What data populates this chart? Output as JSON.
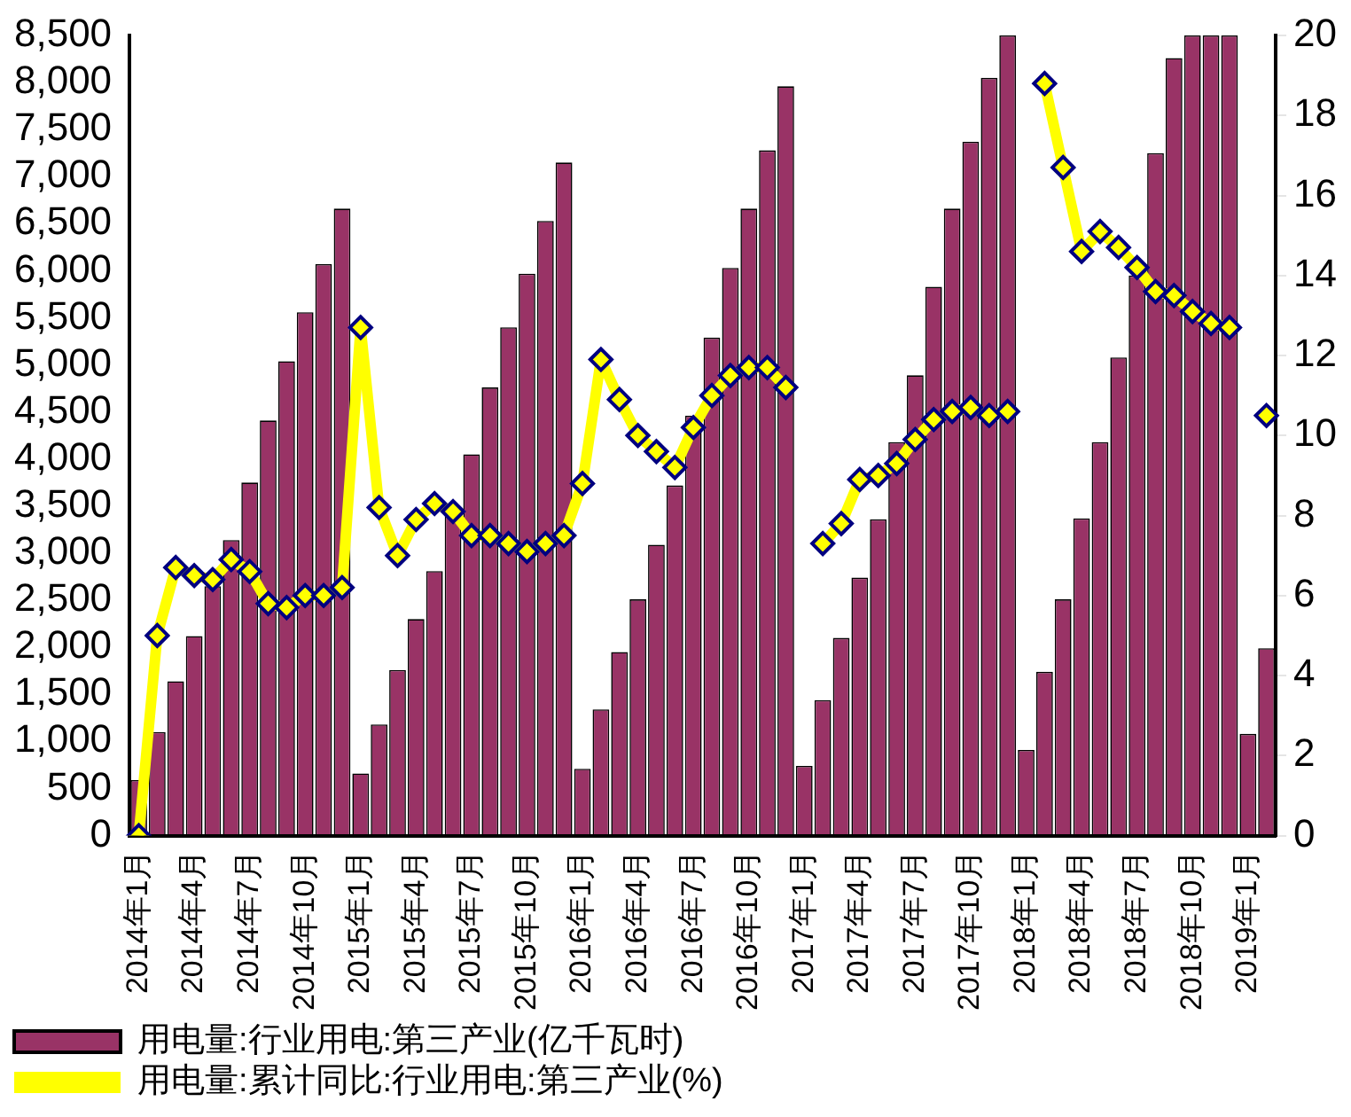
{
  "chart_data": {
    "type": "bar",
    "categories": [
      "2014年1月",
      null,
      null,
      "2014年4月",
      null,
      null,
      "2014年7月",
      null,
      null,
      "2014年10月",
      null,
      null,
      "2015年1月",
      null,
      null,
      "2015年4月",
      null,
      null,
      "2015年7月",
      null,
      null,
      "2015年10月",
      null,
      null,
      "2016年1月",
      null,
      null,
      "2016年4月",
      null,
      null,
      "2016年7月",
      null,
      null,
      "2016年10月",
      null,
      null,
      "2017年1月",
      null,
      null,
      "2017年4月",
      null,
      null,
      "2017年7月",
      null,
      null,
      "2017年10月",
      null,
      null,
      "2018年1月",
      null,
      null,
      "2018年4月",
      null,
      null,
      "2018年7月",
      null,
      null,
      "2018年10月",
      null,
      null,
      "2019年1月",
      null
    ],
    "series": [
      {
        "name": "用电量:行业用电:第三产业(亿千瓦时)",
        "color": "#993366",
        "values": [
          590,
          1100,
          1640,
          2120,
          2650,
          3140,
          3750,
          4410,
          5040,
          5560,
          6070,
          6660,
          660,
          1180,
          1760,
          2300,
          2810,
          3420,
          4050,
          4760,
          5400,
          5970,
          6530,
          7150,
          710,
          1340,
          1950,
          2510,
          3090,
          3720,
          4460,
          5290,
          6030,
          6660,
          7280,
          7960,
          740,
          1440,
          2100,
          2740,
          3360,
          4180,
          4890,
          5830,
          6660,
          7370,
          8050,
          8500,
          910,
          1740,
          2510,
          3370,
          4180,
          5080,
          5950,
          7250,
          8260,
          8500,
          8500,
          8500,
          1080,
          1990
        ]
      },
      {
        "name": "用电量:累计同比:行业用电:第三产业(%)",
        "type": "line",
        "axis": "y2",
        "color": "#ffff00",
        "values": [
          0,
          5.0,
          6.7,
          6.5,
          6.4,
          6.9,
          6.6,
          5.8,
          5.7,
          6.0,
          6.0,
          6.2,
          12.7,
          8.2,
          7.0,
          7.9,
          8.3,
          8.1,
          7.5,
          7.5,
          7.3,
          7.1,
          7.3,
          7.5,
          8.8,
          11.9,
          10.9,
          10.0,
          9.6,
          9.2,
          10.2,
          11.0,
          11.5,
          11.7,
          11.7,
          11.2,
          null,
          7.3,
          7.8,
          8.9,
          9.0,
          9.3,
          9.9,
          10.4,
          10.6,
          10.7,
          10.5,
          10.6,
          null,
          18.8,
          16.7,
          14.6,
          15.1,
          14.7,
          14.2,
          13.6,
          13.5,
          13.1,
          12.8,
          12.7,
          null,
          10.5
        ]
      }
    ],
    "ylim": [
      0,
      8500
    ],
    "yticks": [
      0,
      500,
      {
        "value": 1000,
        "label": "1,000"
      },
      {
        "value": 1500,
        "label": "1,500"
      },
      {
        "value": 2000,
        "label": "2,000"
      },
      {
        "value": 2500,
        "label": "2,500"
      },
      {
        "value": 3000,
        "label": "3,000"
      },
      {
        "value": 3500,
        "label": "3,500"
      },
      {
        "value": 4000,
        "label": "4,000"
      },
      {
        "value": 4500,
        "label": "4,500"
      },
      {
        "value": 5000,
        "label": "5,000"
      },
      {
        "value": 5500,
        "label": "5,500"
      },
      {
        "value": 6000,
        "label": "6,000"
      },
      {
        "value": 6500,
        "label": "6,500"
      },
      {
        "value": 7000,
        "label": "7,000"
      },
      {
        "value": 7500,
        "label": "7,500"
      },
      {
        "value": 8000,
        "label": "8,000"
      },
      {
        "value": 8500,
        "label": "8,500"
      }
    ],
    "y2lim": [
      0,
      20
    ],
    "y2ticks": [
      0,
      2,
      4,
      6,
      8,
      10,
      12,
      14,
      16,
      18,
      20
    ],
    "grid": false,
    "legend": "bottom",
    "marker": "diamond"
  }
}
